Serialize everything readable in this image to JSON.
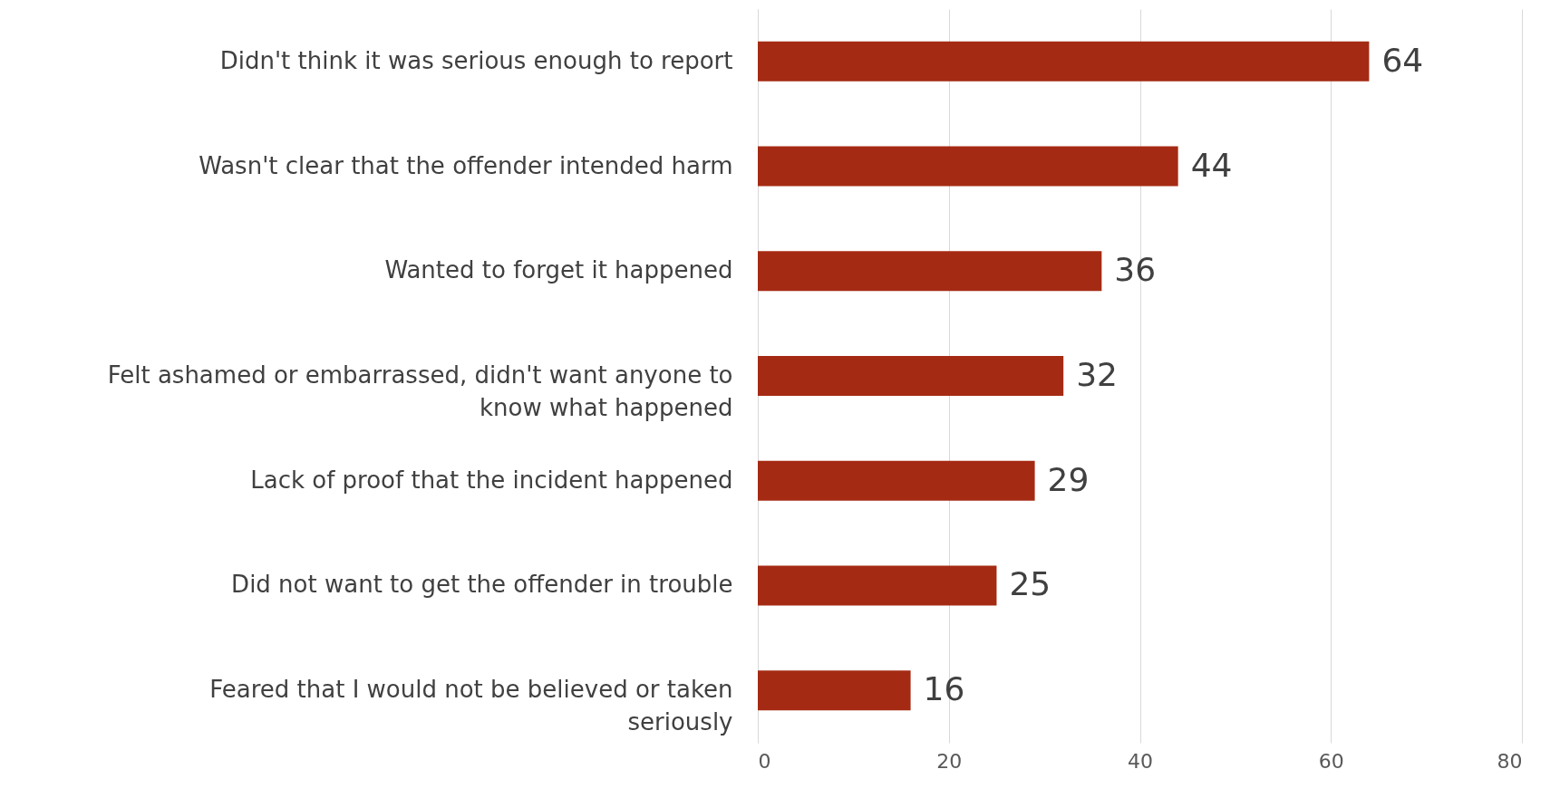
{
  "chart_data": {
    "type": "bar",
    "orientation": "horizontal",
    "categories": [
      "Didn't think it was serious enough to report",
      "Wasn't clear that the offender intended harm",
      "Wanted to forget it happened",
      "Felt ashamed or embarrassed, didn't want anyone to know what happened",
      "Lack of proof that the incident happened",
      "Did not want to get the offender in trouble",
      "Feared that I would not be believed or taken seriously"
    ],
    "values": [
      64,
      44,
      36,
      32,
      29,
      25,
      16
    ],
    "color": "#a52a13",
    "xlim": [
      0,
      80
    ],
    "xticks": [
      0,
      20,
      40,
      60,
      80
    ],
    "grid": "x",
    "data_labels": true
  }
}
